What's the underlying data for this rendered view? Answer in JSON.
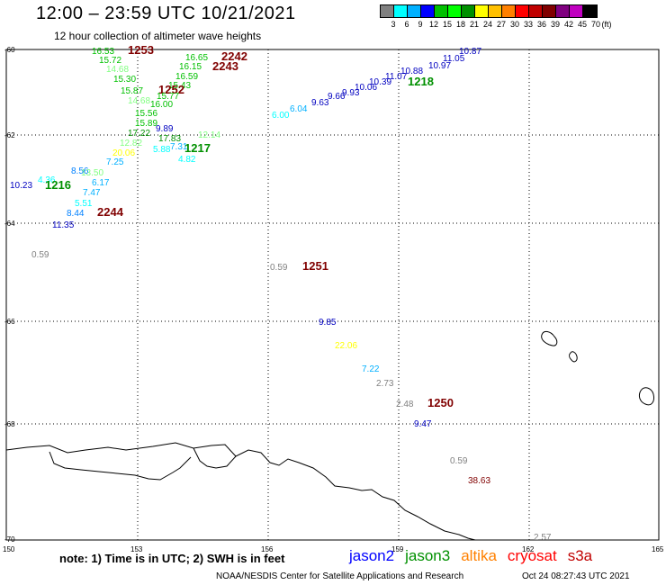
{
  "header": {
    "title": "12:00 – 23:59 UTC 10/21/2021",
    "subtitle": "12 hour collection of altimeter wave heights"
  },
  "legend": {
    "colors": [
      "#808080",
      "#00ffff",
      "#00b0ff",
      "#0000ff",
      "#00c000",
      "#00ff00",
      "#009000",
      "#ffff00",
      "#ffc000",
      "#ff8000",
      "#ff0000",
      "#c00000",
      "#800000",
      "#800080",
      "#c000c0",
      "#000000"
    ],
    "ticks": [
      "3",
      "6",
      "9",
      "12",
      "15",
      "18",
      "21",
      "24",
      "27",
      "30",
      "33",
      "36",
      "39",
      "42",
      "45",
      "70",
      "(ft)"
    ]
  },
  "map": {
    "lon_ticks": [
      "150",
      "153",
      "156",
      "159",
      "162",
      "165"
    ],
    "lat_ticks": [
      "-60",
      "-62",
      "-64",
      "-66",
      "-68",
      "-70"
    ],
    "measurements": [
      {
        "text": "16.53",
        "color": "#00c000"
      },
      {
        "text": "1253",
        "color": "#800000",
        "bold": true
      },
      {
        "text": "15.72",
        "color": "#00c000"
      },
      {
        "text": "14.68",
        "color": "#80ff80"
      },
      {
        "text": "15.30",
        "color": "#00c000"
      },
      {
        "text": "15.87",
        "color": "#00c000"
      },
      {
        "text": "14.68",
        "color": "#80ff80"
      },
      {
        "text": "15.56",
        "color": "#00c000"
      },
      {
        "text": "15.89",
        "color": "#00c000"
      },
      {
        "text": "17.22",
        "color": "#009000"
      },
      {
        "text": "12.82",
        "color": "#80ff80"
      },
      {
        "text": "20.06",
        "color": "#ffff00"
      },
      {
        "text": "7.25",
        "color": "#00b0ff"
      },
      {
        "text": "8.56",
        "color": "#0080ff"
      },
      {
        "text": "13.50",
        "color": "#80ff80"
      },
      {
        "text": "4.36",
        "color": "#00ffff"
      },
      {
        "text": "6.17",
        "color": "#00b0ff"
      },
      {
        "text": "10.23",
        "color": "#0000c0"
      },
      {
        "text": "1216",
        "color": "#009000",
        "bold": true
      },
      {
        "text": "7.47",
        "color": "#00b0ff"
      },
      {
        "text": "5.51",
        "color": "#00ffff"
      },
      {
        "text": "8.44",
        "color": "#0080ff"
      },
      {
        "text": "2244",
        "color": "#800000",
        "bold": true
      },
      {
        "text": "11.35",
        "color": "#0000c0"
      },
      {
        "text": "16.65",
        "color": "#00c000"
      },
      {
        "text": "2242",
        "color": "#800000",
        "bold": true
      },
      {
        "text": "16.15",
        "color": "#00c000"
      },
      {
        "text": "2243",
        "color": "#800000",
        "bold": true
      },
      {
        "text": "16.59",
        "color": "#00c000"
      },
      {
        "text": "15.43",
        "color": "#00c000"
      },
      {
        "text": "1252",
        "color": "#800000",
        "bold": true
      },
      {
        "text": "15.77",
        "color": "#00c000"
      },
      {
        "text": "16.00",
        "color": "#00c000"
      },
      {
        "text": "9.89",
        "color": "#0000c0"
      },
      {
        "text": "17.83",
        "color": "#009000"
      },
      {
        "text": "12.14",
        "color": "#80ff80"
      },
      {
        "text": "5.88",
        "color": "#00ffff"
      },
      {
        "text": "7.31",
        "color": "#00b0ff"
      },
      {
        "text": "1217",
        "color": "#009000",
        "bold": true
      },
      {
        "text": "4.82",
        "color": "#00ffff"
      },
      {
        "text": "6.00",
        "color": "#00ffff"
      },
      {
        "text": "6.04",
        "color": "#00b0ff"
      },
      {
        "text": "9.63",
        "color": "#0000c0"
      },
      {
        "text": "9.66",
        "color": "#0000c0"
      },
      {
        "text": "9.93",
        "color": "#0000c0"
      },
      {
        "text": "10.06",
        "color": "#0000c0"
      },
      {
        "text": "10.39",
        "color": "#0000c0"
      },
      {
        "text": "11.07",
        "color": "#0000c0"
      },
      {
        "text": "10.88",
        "color": "#0000c0"
      },
      {
        "text": "10.97",
        "color": "#0000c0"
      },
      {
        "text": "11.05",
        "color": "#0000c0"
      },
      {
        "text": "10.87",
        "color": "#0000c0"
      },
      {
        "text": "1218",
        "color": "#009000",
        "bold": true
      },
      {
        "text": "0.59",
        "color": "#808080"
      },
      {
        "text": "0.59",
        "color": "#808080"
      },
      {
        "text": "1251",
        "color": "#800000",
        "bold": true
      },
      {
        "text": "9.85",
        "color": "#0000c0"
      },
      {
        "text": "22.06",
        "color": "#ffff00"
      },
      {
        "text": "7.22",
        "color": "#00b0ff"
      },
      {
        "text": "2.73",
        "color": "#808080"
      },
      {
        "text": "2.48",
        "color": "#808080"
      },
      {
        "text": "1250",
        "color": "#800000",
        "bold": true
      },
      {
        "text": "9.47",
        "color": "#0000c0"
      },
      {
        "text": "0.59",
        "color": "#808080"
      },
      {
        "text": "38.63",
        "color": "#800000"
      },
      {
        "text": "2.57",
        "color": "#808080"
      }
    ]
  },
  "note": "note: 1) Time is in UTC; 2) SWH is in feet",
  "satellites": [
    {
      "name": "jason2",
      "color": "#0000ff"
    },
    {
      "name": "jason3",
      "color": "#009000"
    },
    {
      "name": "altika",
      "color": "#ff8000"
    },
    {
      "name": "cryosat",
      "color": "#ff0000"
    },
    {
      "name": "s3a",
      "color": "#c00000"
    }
  ],
  "footer": {
    "credit": "NOAA/NESDIS Center for Satellite Applications and Research",
    "timestamp": "Oct 24 08:27:43 UTC 2021"
  }
}
